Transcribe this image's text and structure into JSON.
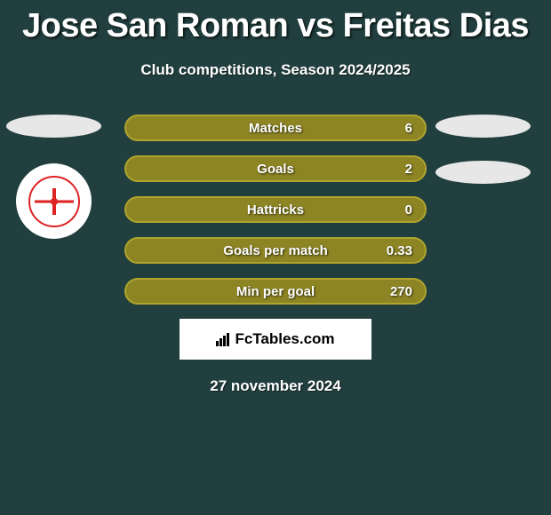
{
  "title": "Jose San Roman vs Freitas Dias",
  "subtitle": "Club competitions, Season 2024/2025",
  "date": "27 november 2024",
  "watermark": "FcTables.com",
  "theme": {
    "background": "#213f3e",
    "bar_fill": "#8d8524",
    "bar_border": "#aea52d",
    "text_color": "#ffffff",
    "ellipse_color": "#e7e7e7",
    "watermark_bg": "#ffffff",
    "logo_accent": "#d22"
  },
  "stats": [
    {
      "label": "Matches",
      "value": "6"
    },
    {
      "label": "Goals",
      "value": "2"
    },
    {
      "label": "Hattricks",
      "value": "0"
    },
    {
      "label": "Goals per match",
      "value": "0.33"
    },
    {
      "label": "Min per goal",
      "value": "270"
    }
  ]
}
